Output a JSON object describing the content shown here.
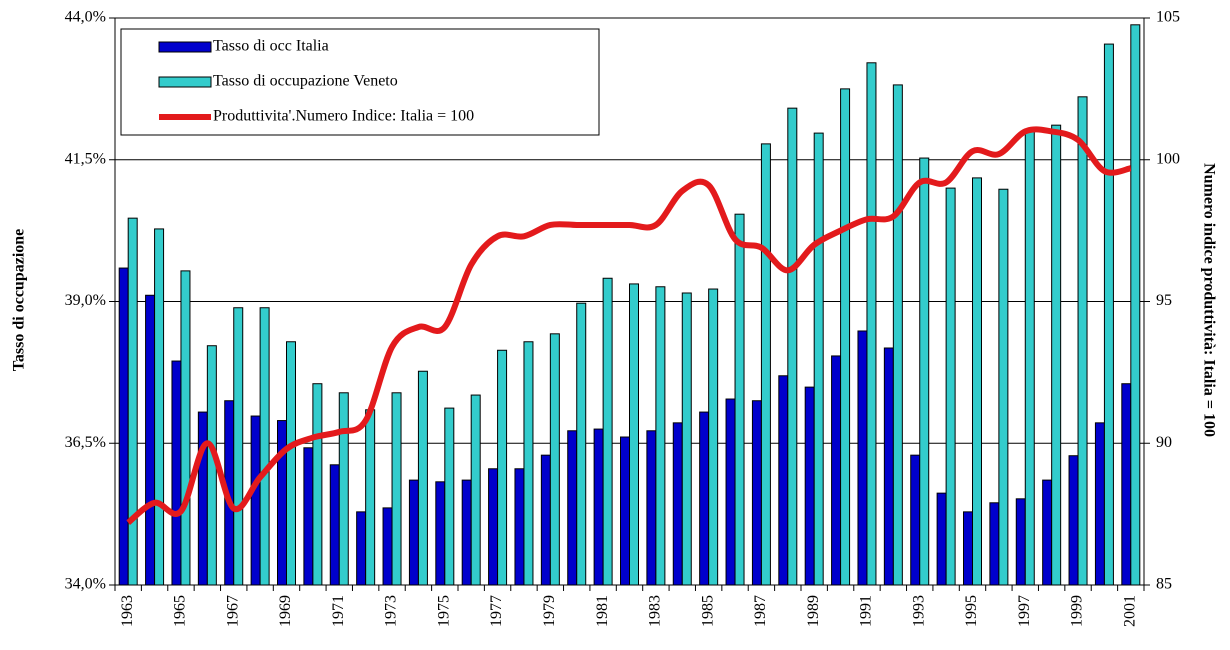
{
  "chart_data": {
    "type": "bar-line",
    "ylabel": "Tasso di occupazione",
    "y2label": "Numero indice produttività: Italia = 100",
    "categories": [
      "1963",
      null,
      "1965",
      null,
      "1967",
      null,
      "1969",
      null,
      "1971",
      null,
      "1973",
      null,
      "1975",
      null,
      "1977",
      null,
      "1979",
      null,
      "1981",
      null,
      "1983",
      null,
      "1985",
      null,
      "1987",
      null,
      "1989",
      null,
      "1991",
      null,
      "1993",
      null,
      "1995",
      null,
      "1997",
      null,
      "1999",
      null,
      "2001"
    ],
    "series": [
      {
        "name": "Tasso di occ Italia",
        "color": "#0000cc",
        "kind": "bar",
        "values": [
          39.59,
          39.11,
          37.95,
          37.05,
          37.25,
          36.98,
          36.9,
          36.42,
          36.12,
          35.29,
          35.36,
          35.85,
          35.82,
          35.85,
          36.05,
          36.05,
          36.29,
          36.72,
          36.75,
          36.61,
          36.72,
          36.86,
          37.05,
          37.28,
          37.25,
          37.69,
          37.49,
          38.04,
          38.48,
          38.18,
          36.29,
          35.62,
          35.29,
          35.45,
          35.52,
          35.85,
          36.28,
          36.86,
          37.55
        ]
      },
      {
        "name": "Tasso di occupazione Veneto",
        "color": "#33cccc",
        "kind": "bar",
        "values": [
          40.47,
          40.28,
          39.54,
          38.22,
          38.89,
          38.89,
          38.29,
          37.55,
          37.39,
          37.09,
          37.39,
          37.77,
          37.12,
          37.35,
          38.14,
          38.29,
          38.43,
          38.97,
          39.41,
          39.31,
          39.26,
          39.15,
          39.22,
          40.54,
          41.78,
          42.41,
          41.97,
          42.75,
          43.21,
          42.82,
          41.53,
          41.0,
          41.18,
          40.98,
          42.02,
          42.11,
          42.61,
          43.54,
          43.88
        ]
      },
      {
        "name": "Produttivita'.Numero Indice: Italia = 100",
        "color": "#e31a1c",
        "kind": "line",
        "axis": "y2",
        "values": [
          87.2,
          87.9,
          87.6,
          90.0,
          87.7,
          88.8,
          89.8,
          90.2,
          90.4,
          90.8,
          93.4,
          94.1,
          94.1,
          96.3,
          97.3,
          97.3,
          97.7,
          97.7,
          97.7,
          97.7,
          97.7,
          98.9,
          99.1,
          97.2,
          96.9,
          96.1,
          97.0,
          97.5,
          97.9,
          98.0,
          99.2,
          99.2,
          100.3,
          100.2,
          101.0,
          101.0,
          100.7,
          99.6,
          99.7
        ]
      }
    ],
    "ylim": [
      34.0,
      44.0
    ],
    "yticks": [
      {
        "value": 34.0,
        "label": "34,0%"
      },
      {
        "value": 36.5,
        "label": "36,5%"
      },
      {
        "value": 39.0,
        "label": "39,0%"
      },
      {
        "value": 41.5,
        "label": "41,5%"
      },
      {
        "value": 44.0,
        "label": "44,0%"
      }
    ],
    "y2lim": [
      85,
      105
    ],
    "y2ticks": [
      85,
      90,
      95,
      100,
      105
    ],
    "grid": true,
    "legend": "upper-left"
  }
}
